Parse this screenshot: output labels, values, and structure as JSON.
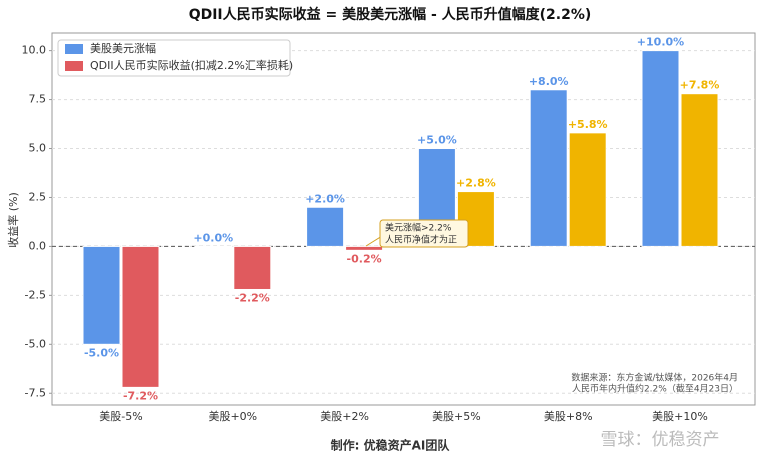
{
  "chart_data": {
    "type": "bar",
    "title": "QDII人民币实际收益 = 美股美元涨幅 - 人民币升值幅度(2.2%)",
    "y_label": "收益率 (%)",
    "x_label": "制作: 优稳资产AI团队",
    "categories": [
      "美股-5%",
      "美股+0%",
      "美股+2%",
      "美股+5%",
      "美股+8%",
      "美股+10%"
    ],
    "series": [
      {
        "name": "美股美元涨幅",
        "color": "#5b95e8",
        "values": [
          -5,
          0,
          2,
          5,
          8,
          10
        ],
        "value_labels": [
          "-5.0%",
          "+0.0%",
          "+2.0%",
          "+5.0%",
          "+8.0%",
          "+10.0%"
        ]
      },
      {
        "name": "QDII人民币实际收益(扣减2.2%汇率损耗)",
        "color": "#e05a5e",
        "colors": [
          "#e05a5e",
          "#e05a5e",
          "#e05a5e",
          "#f0b400",
          "#f0b400",
          "#f0b400"
        ],
        "values": [
          -7.2,
          -2.2,
          -0.2,
          2.8,
          5.8,
          7.8
        ],
        "value_labels": [
          "-7.2%",
          "-2.2%",
          "-0.2%",
          "+2.8%",
          "+5.8%",
          "+7.8%"
        ]
      }
    ],
    "ylim": [
      -8.1,
      10.9
    ],
    "yticks": [
      {
        "value": -7.5,
        "label": "-7.5"
      },
      {
        "value": -5,
        "label": "-5.0"
      },
      {
        "value": -2.5,
        "label": "-2.5"
      },
      {
        "value": 0,
        "label": "0.0"
      },
      {
        "value": 2.5,
        "label": "2.5"
      },
      {
        "value": 5,
        "label": "5.0"
      },
      {
        "value": 7.5,
        "label": "7.5"
      },
      {
        "value": 10,
        "label": "10.0"
      }
    ],
    "reference_line": 0,
    "grid": true,
    "legend": "upper left",
    "annotation": [
      "美元涨幅>2.2%",
      "人民币净值才为正"
    ],
    "source": [
      "数据来源：东方金诚/钛媒体，2026年4月",
      "人民币年内升值约2.2%（截至4月23日）"
    ],
    "watermark": "雪球：优稳资产"
  }
}
